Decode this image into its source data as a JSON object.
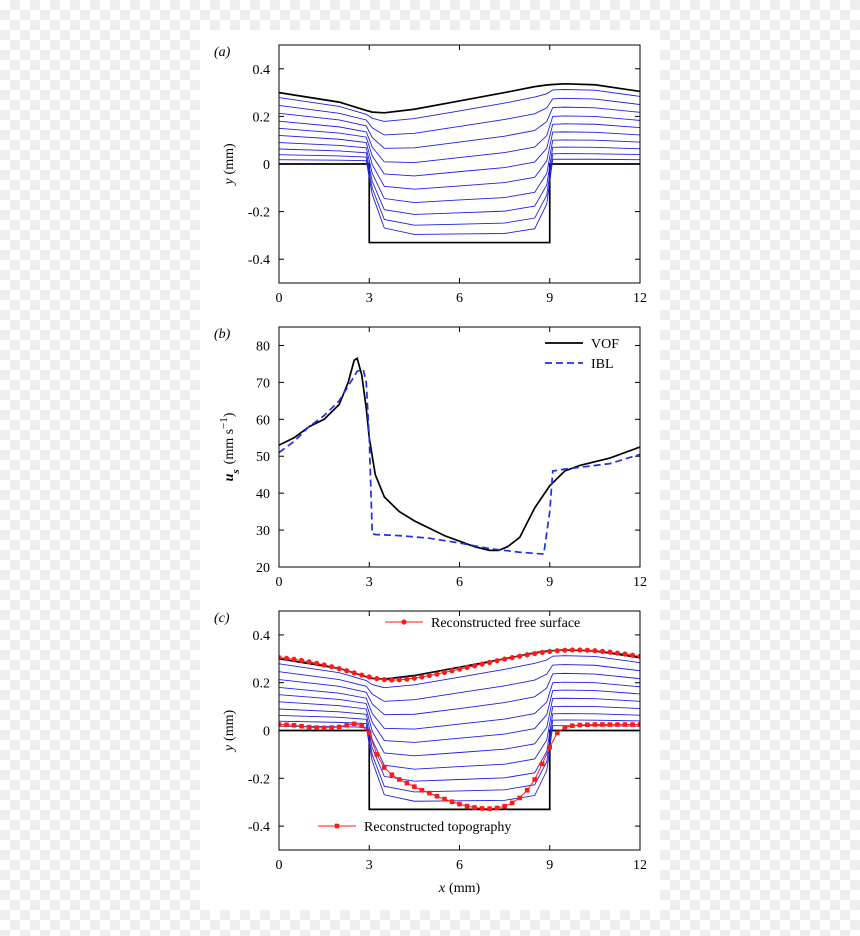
{
  "chart_data": [
    {
      "type": "line",
      "panel_label": "(a)",
      "ylabel": [
        "y",
        "(mm)"
      ],
      "xlim": [
        0,
        12
      ],
      "xticks": [
        0,
        3,
        6,
        9,
        12
      ],
      "ylim": [
        -0.5,
        0.5
      ],
      "yticks": [
        -0.4,
        -0.2,
        0,
        0.2,
        0.4
      ],
      "x": [
        0,
        2,
        2.9,
        3.1,
        3.5,
        4.5,
        6,
        7.5,
        8.5,
        8.9,
        9.1,
        9.5,
        10.5,
        12
      ],
      "series": [
        {
          "color": "#000000",
          "values": [
            0.3,
            0.26,
            0.225,
            0.218,
            0.215,
            0.23,
            0.265,
            0.3,
            0.325,
            0.332,
            0.334,
            0.337,
            0.333,
            0.305
          ]
        },
        {
          "color": "#000000",
          "x": [
            0,
            3,
            3,
            9,
            9,
            12
          ],
          "values": [
            0,
            0,
            -0.33,
            -0.33,
            0,
            0
          ]
        },
        {
          "color": "#2020e0",
          "values": [
            0.279,
            0.242,
            0.209,
            0.192,
            0.179,
            0.191,
            0.223,
            0.256,
            0.281,
            0.295,
            0.311,
            0.313,
            0.31,
            0.284
          ]
        },
        {
          "color": "#2020e0",
          "values": [
            0.246,
            0.213,
            0.185,
            0.152,
            0.122,
            0.129,
            0.158,
            0.187,
            0.211,
            0.236,
            0.274,
            0.276,
            0.273,
            0.25
          ]
        },
        {
          "color": "#2020e0",
          "values": [
            0.213,
            0.185,
            0.16,
            0.111,
            0.066,
            0.068,
            0.092,
            0.117,
            0.141,
            0.178,
            0.237,
            0.239,
            0.236,
            0.217
          ]
        },
        {
          "color": "#2020e0",
          "values": [
            0.18,
            0.156,
            0.135,
            0.071,
            0.009,
            0.006,
            0.027,
            0.048,
            0.071,
            0.119,
            0.2,
            0.202,
            0.2,
            0.183
          ]
        },
        {
          "color": "#2020e0",
          "values": [
            0.15,
            0.13,
            0.113,
            0.034,
            -0.042,
            -0.05,
            -0.032,
            -0.015,
            0.008,
            0.066,
            0.167,
            0.169,
            0.167,
            0.153
          ]
        },
        {
          "color": "#2020e0",
          "values": [
            0.12,
            0.104,
            0.09,
            -0.003,
            -0.094,
            -0.106,
            -0.092,
            -0.078,
            -0.056,
            0.013,
            0.134,
            0.135,
            0.133,
            0.122
          ]
        },
        {
          "color": "#2020e0",
          "values": [
            0.09,
            0.078,
            0.068,
            -0.04,
            -0.145,
            -0.162,
            -0.151,
            -0.141,
            -0.119,
            -0.04,
            0.1,
            0.101,
            0.1,
            0.092
          ]
        },
        {
          "color": "#2020e0",
          "values": [
            0.063,
            0.055,
            0.047,
            -0.073,
            -0.192,
            -0.212,
            -0.205,
            -0.198,
            -0.177,
            -0.088,
            0.07,
            0.071,
            0.07,
            0.064
          ]
        },
        {
          "color": "#2020e0",
          "values": [
            0.039,
            0.034,
            0.029,
            -0.102,
            -0.233,
            -0.257,
            -0.253,
            -0.248,
            -0.227,
            -0.131,
            0.043,
            0.044,
            0.043,
            0.04
          ]
        },
        {
          "color": "#2020e0",
          "values": [
            0.018,
            0.016,
            0.014,
            -0.128,
            -0.269,
            -0.296,
            -0.294,
            -0.292,
            -0.272,
            -0.168,
            0.02,
            0.02,
            0.02,
            0.018
          ]
        }
      ]
    },
    {
      "type": "line",
      "panel_label": "(b)",
      "ylabel": [
        "u",
        "s",
        "(mm s",
        "−1",
        ")"
      ],
      "xlim": [
        0,
        12
      ],
      "xticks": [
        0,
        3,
        6,
        9,
        12
      ],
      "ylim": [
        20,
        85
      ],
      "yticks": [
        20,
        30,
        40,
        50,
        60,
        70,
        80
      ],
      "legend": "upper right",
      "series": [
        {
          "name": "VOF",
          "color": "#000000",
          "dash": false,
          "x": [
            0,
            0.5,
            1,
            1.5,
            2,
            2.3,
            2.5,
            2.6,
            2.75,
            2.9,
            3.0,
            3.2,
            3.5,
            4,
            4.5,
            5,
            5.5,
            6,
            6.5,
            7,
            7.3,
            7.6,
            8,
            8.5,
            9,
            9.5,
            10,
            11,
            12
          ],
          "values": [
            53,
            55,
            58,
            60,
            64,
            70,
            76,
            76.5,
            72,
            63,
            55,
            45,
            39,
            35,
            32.5,
            30.5,
            28.5,
            27,
            25.5,
            24.5,
            24.5,
            25.5,
            28,
            36,
            42,
            46,
            47.5,
            49.5,
            52.5
          ]
        },
        {
          "name": "IBL",
          "color": "#2030e0",
          "dash": true,
          "x": [
            0,
            0.5,
            1,
            1.5,
            2,
            2.3,
            2.6,
            2.8,
            2.9,
            3.0,
            3.1,
            3.2,
            4,
            5,
            6,
            7,
            8,
            8.8,
            9.0,
            9.1,
            9.5,
            10,
            11,
            12
          ],
          "values": [
            51,
            54,
            58,
            61,
            65,
            69,
            73,
            73.5,
            70,
            55,
            29,
            28.8,
            28.5,
            27.8,
            26.5,
            25,
            24,
            23.5,
            35,
            46,
            46.5,
            47,
            48,
            50.5
          ]
        }
      ]
    },
    {
      "type": "line",
      "panel_label": "(c)",
      "ylabel": [
        "y",
        "(mm)"
      ],
      "xlabel": [
        "x",
        "(mm)"
      ],
      "xlim": [
        0,
        12
      ],
      "xticks": [
        0,
        3,
        6,
        9,
        12
      ],
      "ylim": [
        -0.5,
        0.5
      ],
      "yticks": [
        -0.4,
        -0.2,
        0,
        0.2,
        0.4
      ],
      "x": [
        0,
        0.25,
        0.5,
        0.75,
        1,
        1.25,
        1.5,
        1.75,
        2,
        2.25,
        2.5,
        2.75,
        3,
        3.25,
        3.5,
        3.75,
        4,
        4.25,
        4.5,
        4.75,
        5,
        5.25,
        5.5,
        5.75,
        6,
        6.25,
        6.5,
        6.75,
        7,
        7.25,
        7.5,
        7.75,
        8,
        8.25,
        8.5,
        8.75,
        9,
        9.25,
        9.5,
        9.75,
        10,
        10.25,
        10.5,
        10.75,
        11,
        11.25,
        11.5,
        11.75,
        12
      ],
      "series": [
        {
          "name": "Reconstructed free surface",
          "color": "#ff1a1a",
          "marker": "circle",
          "legend": "upper center",
          "values": [
            0.305,
            0.302,
            0.298,
            0.293,
            0.287,
            0.281,
            0.274,
            0.267,
            0.259,
            0.25,
            0.241,
            0.232,
            0.224,
            0.217,
            0.213,
            0.211,
            0.212,
            0.215,
            0.219,
            0.224,
            0.23,
            0.236,
            0.243,
            0.25,
            0.257,
            0.264,
            0.271,
            0.278,
            0.285,
            0.292,
            0.299,
            0.305,
            0.311,
            0.317,
            0.322,
            0.327,
            0.331,
            0.334,
            0.336,
            0.337,
            0.337,
            0.336,
            0.334,
            0.331,
            0.328,
            0.324,
            0.32,
            0.315,
            0.31
          ]
        },
        {
          "name": "Reconstructed topography",
          "color": "#ff1a1a",
          "marker": "square",
          "legend": "lower left",
          "values": [
            0.025,
            0.024,
            0.022,
            0.018,
            0.014,
            0.012,
            0.011,
            0.012,
            0.015,
            0.022,
            0.028,
            0.02,
            -0.01,
            -0.1,
            -0.155,
            -0.185,
            -0.205,
            -0.22,
            -0.235,
            -0.25,
            -0.262,
            -0.275,
            -0.287,
            -0.298,
            -0.308,
            -0.316,
            -0.322,
            -0.326,
            -0.327,
            -0.324,
            -0.317,
            -0.303,
            -0.282,
            -0.25,
            -0.205,
            -0.14,
            -0.07,
            -0.01,
            0.012,
            0.02,
            0.023,
            0.024,
            0.025,
            0.025,
            0.025,
            0.025,
            0.025,
            0.025,
            0.025
          ]
        }
      ]
    }
  ]
}
